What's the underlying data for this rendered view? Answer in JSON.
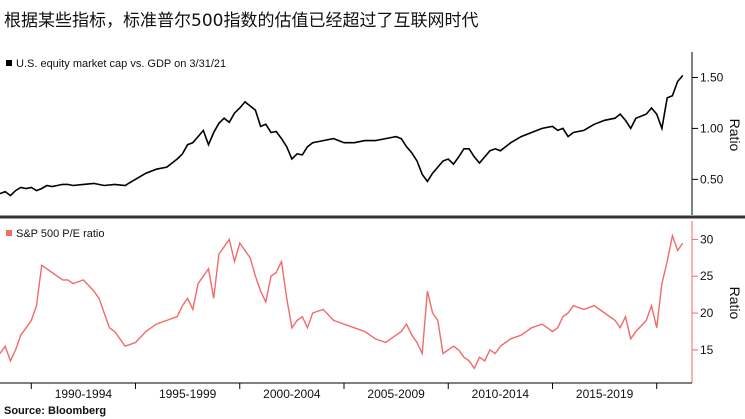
{
  "header": {
    "title": "根据某些指标，标准普尔500指数的估值已经超过了互联网时代"
  },
  "source": "Source: Bloomberg",
  "colors": {
    "top_series": "#000000",
    "bottom_series": "#f26a6a",
    "axis": "#000000",
    "divider": "#333333"
  },
  "chart_data": [
    {
      "type": "line",
      "legend": "U.S. equity market cap vs. GDP on 3/31/21",
      "ylabel": "Ratio",
      "ylim": [
        0.15,
        1.75
      ],
      "yticks": [
        0.5,
        1.0,
        1.5
      ],
      "ytick_labels": [
        "0.50",
        "1.00",
        "1.50"
      ],
      "xlim": [
        1988.5,
        2021.5
      ],
      "x": [
        1988.5,
        1988.75,
        1989.0,
        1989.25,
        1989.5,
        1989.75,
        1990.0,
        1990.25,
        1990.5,
        1990.75,
        1991.0,
        1991.25,
        1991.5,
        1991.75,
        1992.0,
        1992.5,
        1993.0,
        1993.5,
        1994.0,
        1994.5,
        1995.0,
        1995.5,
        1996.0,
        1996.5,
        1997.0,
        1997.25,
        1997.5,
        1997.75,
        1998.0,
        1998.25,
        1998.5,
        1998.75,
        1999.0,
        1999.25,
        1999.5,
        1999.75,
        2000.0,
        2000.25,
        2000.5,
        2000.75,
        2001.0,
        2001.25,
        2001.5,
        2001.75,
        2002.0,
        2002.25,
        2002.5,
        2002.75,
        2003.0,
        2003.25,
        2003.5,
        2004.0,
        2004.5,
        2005.0,
        2005.5,
        2006.0,
        2006.5,
        2007.0,
        2007.5,
        2007.75,
        2008.0,
        2008.25,
        2008.5,
        2008.75,
        2009.0,
        2009.25,
        2009.5,
        2009.75,
        2010.0,
        2010.25,
        2010.5,
        2010.75,
        2011.0,
        2011.25,
        2011.5,
        2011.75,
        2012.0,
        2012.25,
        2012.5,
        2012.75,
        2013.0,
        2013.5,
        2014.0,
        2014.5,
        2015.0,
        2015.25,
        2015.5,
        2015.75,
        2016.0,
        2016.5,
        2017.0,
        2017.5,
        2018.0,
        2018.25,
        2018.5,
        2018.75,
        2019.0,
        2019.5,
        2019.75,
        2020.0,
        2020.25,
        2020.5,
        2020.75,
        2021.0,
        2021.25
      ],
      "y": [
        0.36,
        0.38,
        0.34,
        0.39,
        0.42,
        0.41,
        0.42,
        0.39,
        0.41,
        0.44,
        0.43,
        0.44,
        0.45,
        0.45,
        0.44,
        0.45,
        0.46,
        0.44,
        0.45,
        0.44,
        0.5,
        0.56,
        0.6,
        0.62,
        0.7,
        0.75,
        0.84,
        0.86,
        0.92,
        0.98,
        0.84,
        0.96,
        1.05,
        1.1,
        1.06,
        1.15,
        1.2,
        1.26,
        1.22,
        1.18,
        1.02,
        1.04,
        0.96,
        0.97,
        0.9,
        0.82,
        0.7,
        0.75,
        0.74,
        0.82,
        0.86,
        0.88,
        0.9,
        0.86,
        0.86,
        0.88,
        0.88,
        0.9,
        0.92,
        0.9,
        0.82,
        0.76,
        0.68,
        0.55,
        0.48,
        0.56,
        0.62,
        0.68,
        0.7,
        0.65,
        0.72,
        0.8,
        0.8,
        0.72,
        0.66,
        0.72,
        0.78,
        0.8,
        0.78,
        0.82,
        0.86,
        0.92,
        0.96,
        1.0,
        1.02,
        0.98,
        1.0,
        0.92,
        0.96,
        0.98,
        1.04,
        1.08,
        1.1,
        1.14,
        1.08,
        1.0,
        1.1,
        1.14,
        1.2,
        1.14,
        1.0,
        1.3,
        1.32,
        1.46,
        1.52
      ]
    },
    {
      "type": "line",
      "legend": "S&P 500 P/E ratio",
      "ylabel": "Ratio",
      "ylim": [
        10.5,
        32.5
      ],
      "yticks": [
        15,
        20,
        25,
        30
      ],
      "ytick_labels": [
        "15",
        "20",
        "25",
        "30"
      ],
      "xlim": [
        1988.5,
        2021.5
      ],
      "x_tick_labels": [
        "1990-1994",
        "1995-1999",
        "2000-2004",
        "2005-2009",
        "2010-2014",
        "2015-2019"
      ],
      "x": [
        1988.5,
        1988.75,
        1989.0,
        1989.25,
        1989.5,
        1989.75,
        1990.0,
        1990.25,
        1990.5,
        1990.75,
        1991.0,
        1991.25,
        1991.5,
        1991.75,
        1992.0,
        1992.5,
        1993.0,
        1993.25,
        1993.5,
        1993.75,
        1994.0,
        1994.5,
        1995.0,
        1995.5,
        1996.0,
        1996.5,
        1997.0,
        1997.25,
        1997.5,
        1997.75,
        1998.0,
        1998.25,
        1998.5,
        1998.75,
        1999.0,
        1999.25,
        1999.5,
        1999.75,
        2000.0,
        2000.25,
        2000.5,
        2000.75,
        2001.0,
        2001.25,
        2001.5,
        2001.75,
        2002.0,
        2002.25,
        2002.5,
        2002.75,
        2003.0,
        2003.25,
        2003.5,
        2004.0,
        2004.5,
        2005.0,
        2005.5,
        2006.0,
        2006.5,
        2007.0,
        2007.5,
        2007.75,
        2008.0,
        2008.25,
        2008.5,
        2008.75,
        2009.0,
        2009.25,
        2009.5,
        2009.75,
        2010.0,
        2010.25,
        2010.5,
        2010.75,
        2011.0,
        2011.25,
        2011.5,
        2011.75,
        2012.0,
        2012.25,
        2012.5,
        2012.75,
        2013.0,
        2013.5,
        2014.0,
        2014.5,
        2015.0,
        2015.25,
        2015.5,
        2015.75,
        2016.0,
        2016.5,
        2017.0,
        2017.5,
        2018.0,
        2018.25,
        2018.5,
        2018.75,
        2019.0,
        2019.5,
        2019.75,
        2020.0,
        2020.25,
        2020.5,
        2020.75,
        2021.0,
        2021.25
      ],
      "y": [
        14.5,
        15.5,
        13.5,
        15.0,
        17.0,
        18.0,
        19.0,
        21.0,
        26.5,
        26.0,
        25.5,
        25.0,
        24.5,
        24.5,
        24.0,
        24.5,
        23.0,
        22.0,
        20.0,
        18.0,
        17.5,
        15.5,
        16.0,
        17.5,
        18.5,
        19.0,
        19.5,
        21.0,
        22.0,
        20.5,
        24.0,
        25.0,
        26.0,
        22.0,
        28.0,
        29.0,
        30.0,
        27.0,
        29.5,
        28.5,
        27.5,
        25.0,
        23.0,
        21.5,
        25.0,
        25.5,
        27.0,
        22.0,
        18.0,
        19.0,
        19.5,
        18.0,
        20.0,
        20.5,
        19.0,
        18.5,
        18.0,
        17.5,
        16.5,
        16.0,
        17.0,
        17.5,
        18.5,
        17.0,
        16.0,
        14.5,
        23.0,
        20.0,
        19.0,
        14.5,
        15.0,
        15.5,
        15.0,
        14.0,
        13.5,
        12.5,
        14.0,
        13.5,
        15.0,
        14.5,
        15.5,
        16.0,
        16.5,
        17.0,
        18.0,
        18.5,
        17.5,
        18.0,
        19.5,
        20.0,
        21.0,
        20.5,
        21.0,
        20.0,
        19.0,
        18.0,
        19.5,
        16.5,
        17.5,
        19.0,
        21.0,
        18.0,
        24.0,
        27.0,
        30.5,
        28.5,
        29.5
      ]
    }
  ]
}
